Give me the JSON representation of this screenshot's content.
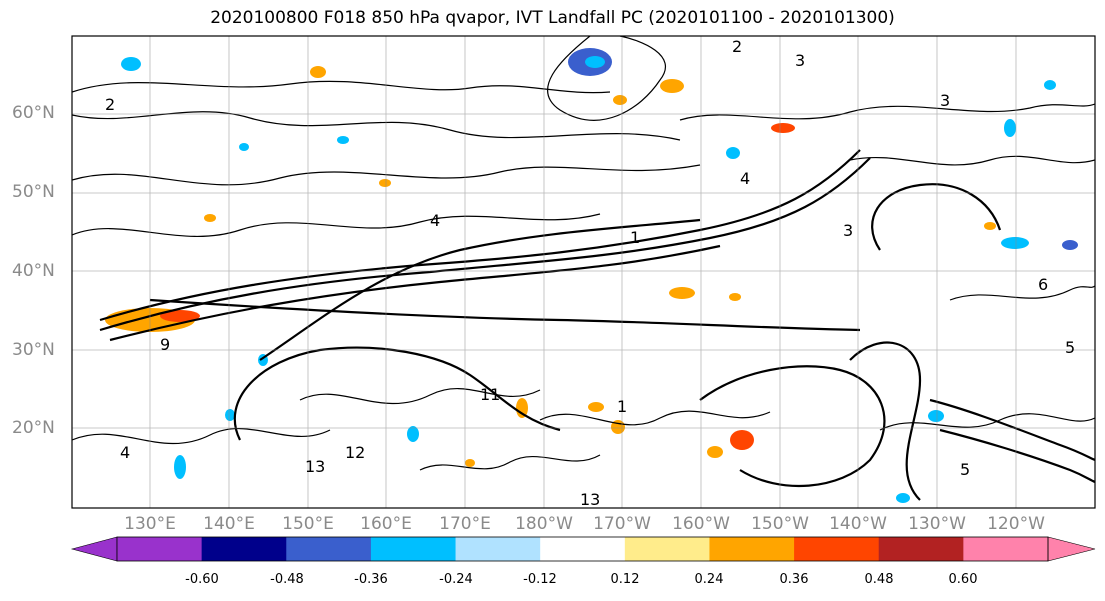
{
  "title": "2020100800 F018 850 hPa qvapor, IVT Landfall PC (2020101100 - 2020101300)",
  "lat_labels": [
    "60°N",
    "50°N",
    "40°N",
    "30°N",
    "20°N"
  ],
  "lon_labels": [
    "130°E",
    "140°E",
    "150°E",
    "160°E",
    "170°E",
    "180°W",
    "170°W",
    "160°W",
    "150°W",
    "140°W",
    "130°W",
    "120°W"
  ],
  "colorbar": {
    "colors": [
      "#9932cc",
      "#00008b",
      "#3a5fcd",
      "#00bfff",
      "#b0e2ff",
      "#ffffff",
      "#ffec8b",
      "#ffa500",
      "#ff4500",
      "#b22222",
      "#ff82ab"
    ],
    "tick_labels": [
      "-0.60",
      "-0.48",
      "-0.36",
      "-0.24",
      "-0.12",
      "0.12",
      "0.24",
      "0.36",
      "0.48",
      "0.60"
    ]
  },
  "contour_labels": [
    "2",
    "3",
    "4",
    "5",
    "6",
    "9",
    "11",
    "12",
    "13",
    "1"
  ]
}
